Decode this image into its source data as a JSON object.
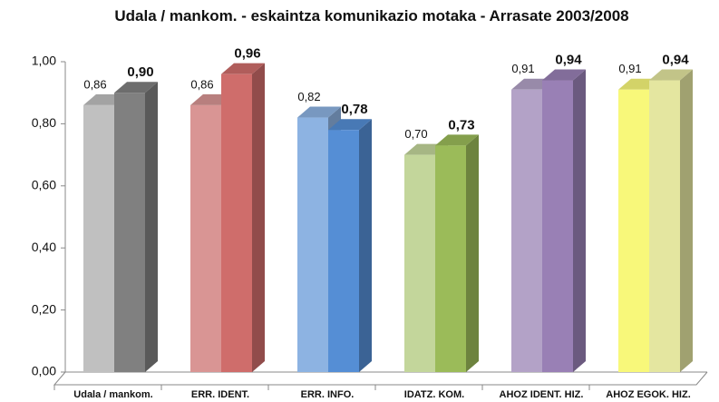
{
  "chart_data": {
    "type": "bar3d",
    "title": "Udala / mankom. - eskaintza komunikazio motaka - Arrasate 2003/2008",
    "categories": [
      "Udala / mankom.",
      "ERR. IDENT.",
      "ERR. INFO.",
      "IDATZ. KOM.",
      "AHOZ IDENT. HIZ.",
      "AHOZ EGOK. HIZ."
    ],
    "series": [
      {
        "values": [
          0.86,
          0.86,
          0.82,
          0.7,
          0.91,
          0.91
        ],
        "value_labels": [
          "0,86",
          "0,86",
          "0,82",
          "0,70",
          "0,91",
          "0,91"
        ],
        "colors": [
          "#c0c0c0",
          "#d99594",
          "#8db3e2",
          "#c3d69b",
          "#b3a2c7",
          "#f8f87a"
        ]
      },
      {
        "values": [
          0.9,
          0.96,
          0.78,
          0.73,
          0.94,
          0.94
        ],
        "value_labels": [
          "0,90",
          "0,96",
          "0,78",
          "0,73",
          "0,94",
          "0,94"
        ],
        "colors": [
          "#808080",
          "#cf6d6b",
          "#558ed5",
          "#9bbb59",
          "#9980b5",
          "#e4e6a0"
        ]
      }
    ],
    "ylim": [
      0,
      1
    ],
    "yticks": [
      {
        "value": 0,
        "label": "0,00"
      },
      {
        "value": 0.2,
        "label": "0,20"
      },
      {
        "value": 0.4,
        "label": "0,40"
      },
      {
        "value": 0.6,
        "label": "0,60"
      },
      {
        "value": 0.8,
        "label": "0,80"
      },
      {
        "value": 1,
        "label": "1,00"
      }
    ]
  }
}
